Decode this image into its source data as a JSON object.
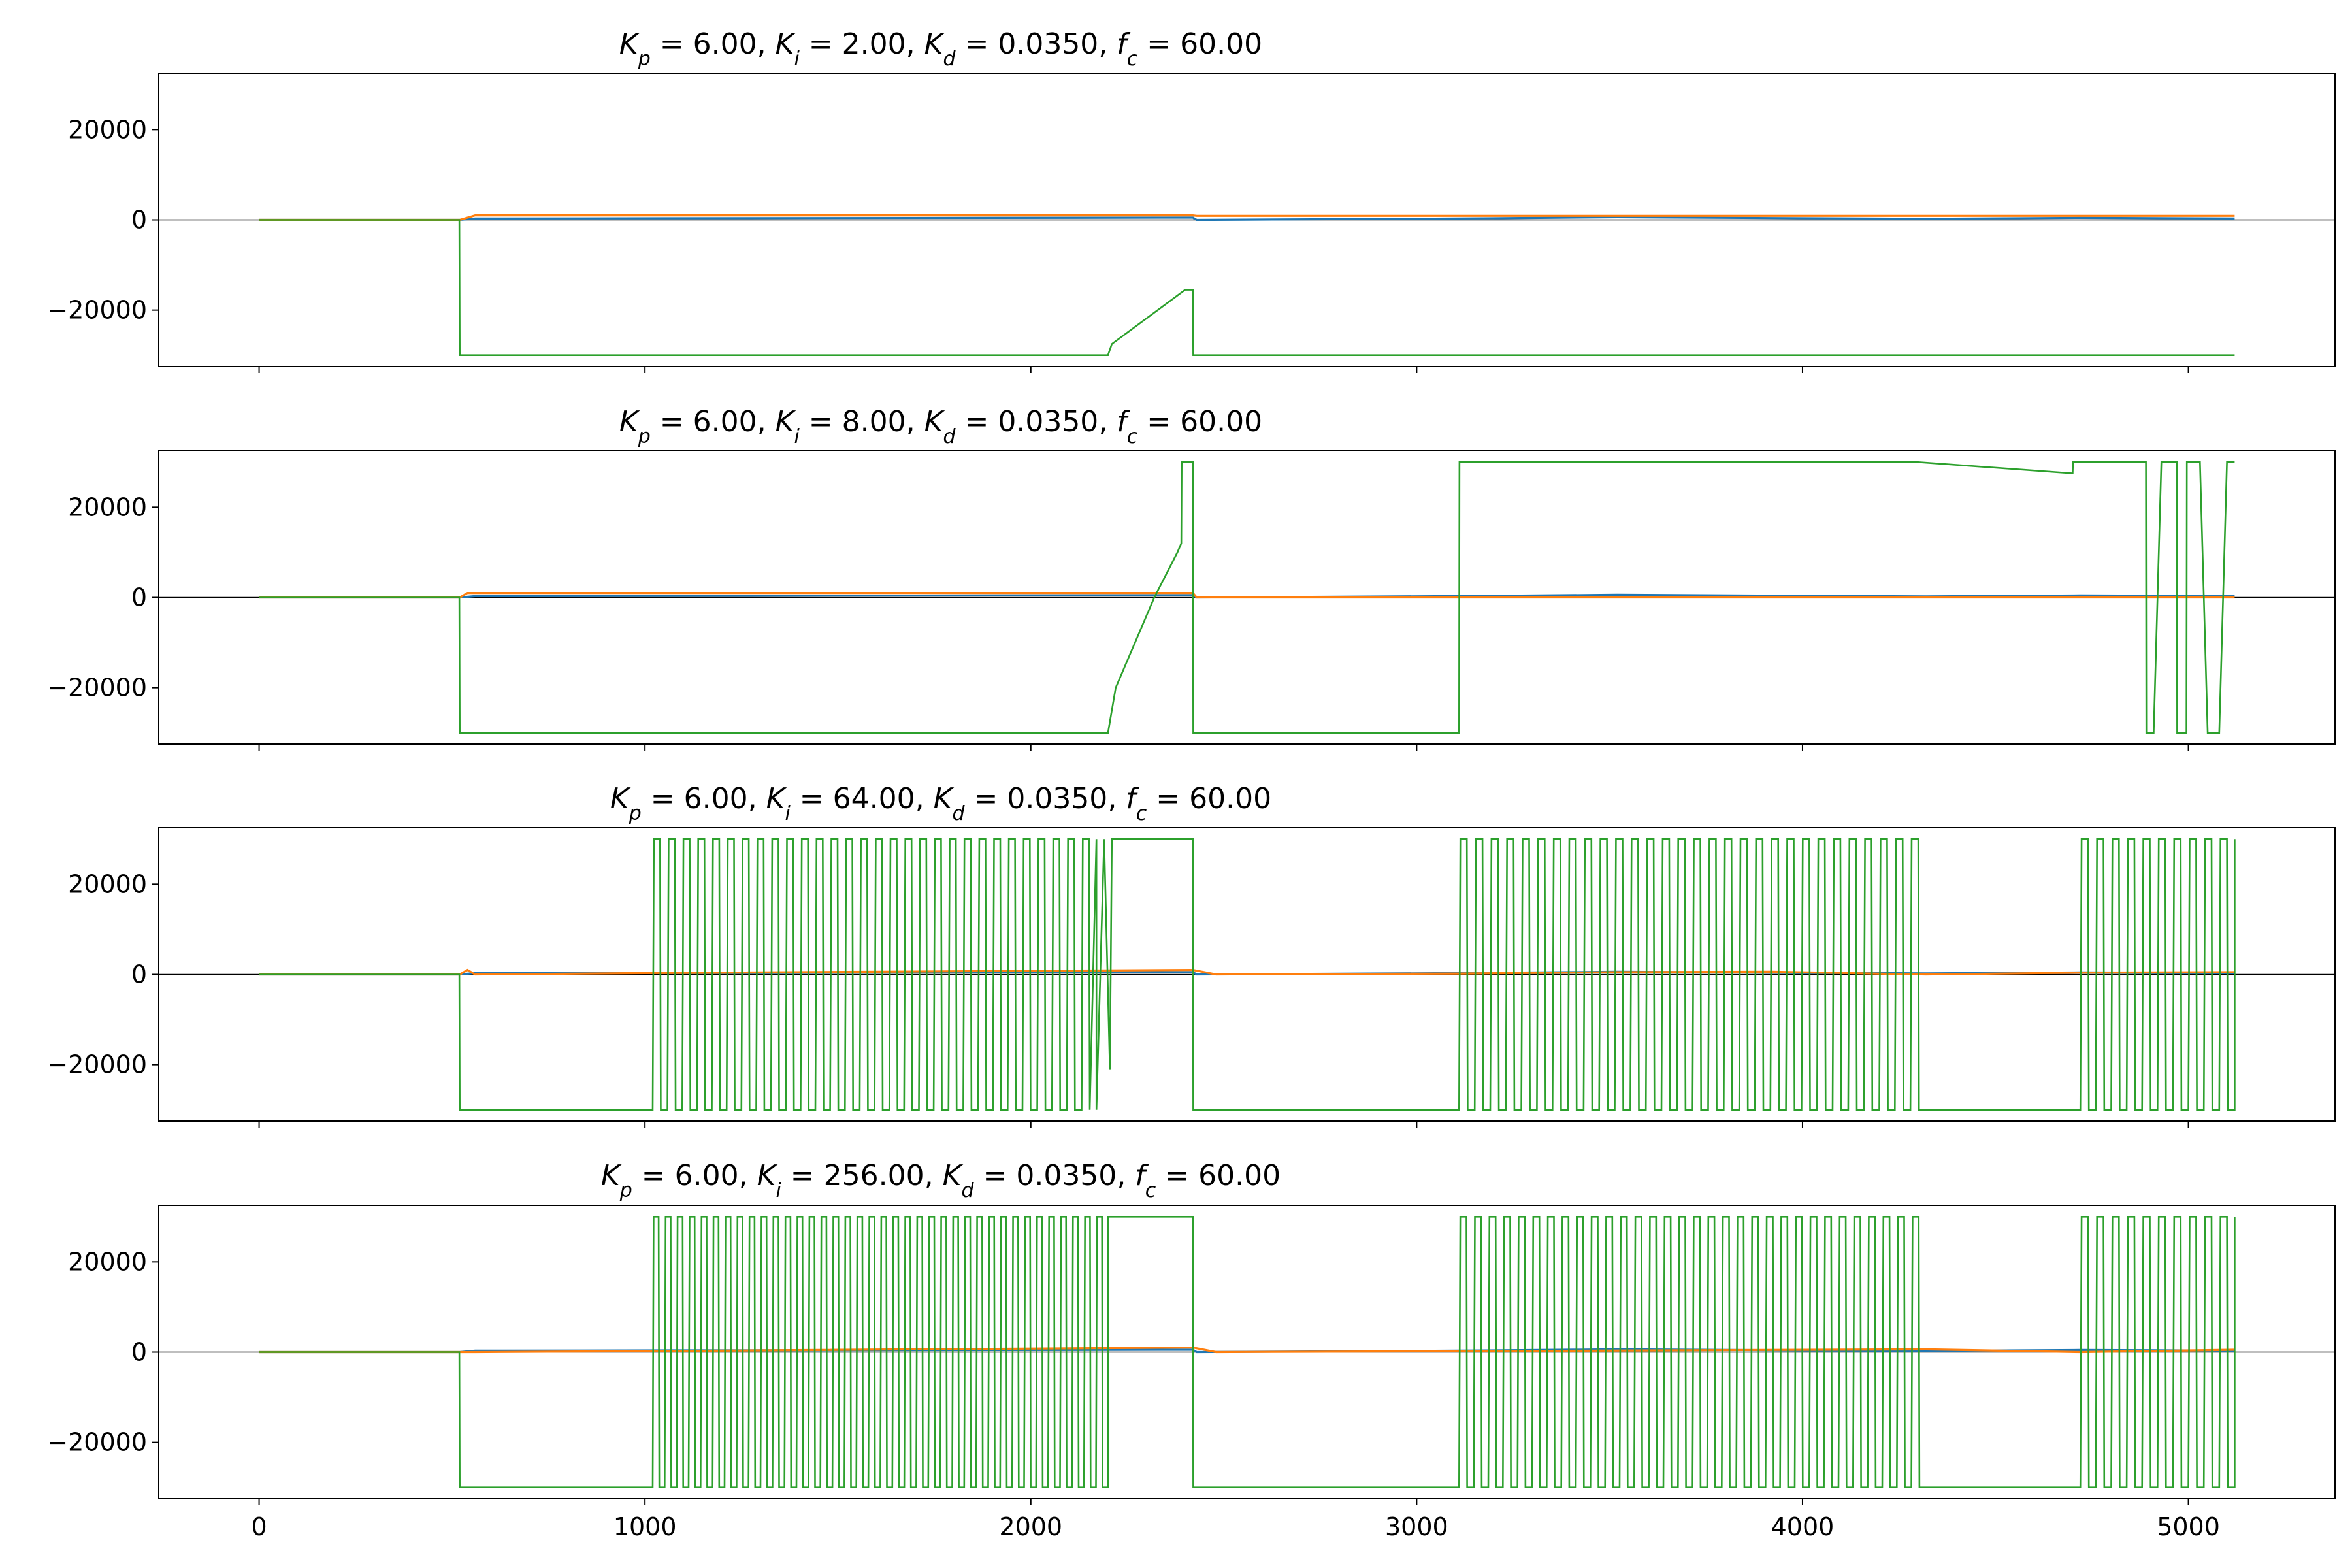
{
  "figure": {
    "background": "#ffffff"
  },
  "colors": {
    "blue": "#1f77b4",
    "orange": "#ff7f0e",
    "green": "#2ca02c",
    "zero_line": "#000000"
  },
  "chart_data": [
    {
      "type": "line",
      "title": "K_p = 6.00,  K_i = 2.00,  K_d = 0.0350,  f_c = 60.00",
      "title_parts": {
        "kp": "6.00",
        "ki": "2.00",
        "kd": "0.0350",
        "fc": "60.00"
      },
      "xlim": [
        -260,
        5380
      ],
      "ylim": [
        -32500,
        32500
      ],
      "xticks": [
        0,
        1000,
        2000,
        3000,
        4000,
        5000
      ],
      "xtick_labels_visible": false,
      "yticks": [
        -20000,
        0,
        20000
      ],
      "series": [
        {
          "color": "blue",
          "x": [
            0,
            520,
            560,
            2420,
            2430,
            3110,
            3520,
            3920,
            4320,
            4720,
            5120
          ],
          "y": [
            0,
            0,
            300,
            500,
            0,
            300,
            600,
            400,
            250,
            450,
            300
          ]
        },
        {
          "color": "orange",
          "x": [
            0,
            520,
            560,
            2420,
            2430,
            5120
          ],
          "y": [
            0,
            0,
            1000,
            1000,
            900,
            900
          ]
        },
        {
          "color": "green",
          "x": [
            0,
            519,
            520,
            2200,
            2210,
            2400,
            2420,
            2421,
            5120
          ],
          "y": [
            0,
            0,
            -30000,
            -30000,
            -27500,
            -15500,
            -15500,
            -30000,
            -30000
          ]
        }
      ]
    },
    {
      "type": "line",
      "title": "K_p = 6.00,  K_i = 8.00,  K_d = 0.0350,  f_c = 60.00",
      "title_parts": {
        "kp": "6.00",
        "ki": "8.00",
        "kd": "0.0350",
        "fc": "60.00"
      },
      "xlim": [
        -260,
        5380
      ],
      "ylim": [
        -32500,
        32500
      ],
      "xticks": [
        0,
        1000,
        2000,
        3000,
        4000,
        5000
      ],
      "xtick_labels_visible": false,
      "yticks": [
        -20000,
        0,
        20000
      ],
      "series": [
        {
          "color": "blue",
          "x": [
            0,
            520,
            560,
            2420,
            2430,
            3110,
            3520,
            3920,
            4320,
            4720,
            5120
          ],
          "y": [
            0,
            0,
            300,
            500,
            0,
            300,
            600,
            400,
            250,
            450,
            300
          ]
        },
        {
          "color": "orange",
          "x": [
            0,
            520,
            540,
            2420,
            2430,
            5120
          ],
          "y": [
            0,
            0,
            1000,
            1000,
            0,
            0
          ]
        },
        {
          "color": "green",
          "x": [
            0,
            519,
            520,
            2200,
            2220,
            2320,
            2380,
            2390,
            2391,
            2420,
            2421,
            3110,
            3111,
            4300,
            4700,
            4701,
            4890,
            4891,
            4910,
            4930,
            4931,
            4970,
            4971,
            4995,
            4996,
            5030,
            5050,
            5080,
            5100,
            5120
          ],
          "y": [
            0,
            0,
            -30000,
            -30000,
            -20000,
            0,
            10000,
            12000,
            30000,
            30000,
            -30000,
            -30000,
            30000,
            30000,
            27500,
            30000,
            30000,
            -30000,
            -30000,
            30000,
            30000,
            30000,
            -30000,
            -30000,
            30000,
            30000,
            -30000,
            -30000,
            30000,
            30000
          ]
        }
      ]
    },
    {
      "type": "line",
      "title": "K_p = 6.00,  K_i = 64.00,  K_d = 0.0350,  f_c = 60.00",
      "title_parts": {
        "kp": "6.00",
        "ki": "64.00",
        "kd": "0.0350",
        "fc": "60.00"
      },
      "xlim": [
        -260,
        5380
      ],
      "ylim": [
        -32500,
        32500
      ],
      "xticks": [
        0,
        1000,
        2000,
        3000,
        4000,
        5000
      ],
      "xtick_labels_visible": false,
      "yticks": [
        -20000,
        0,
        20000
      ],
      "oscillation_bursts": [
        {
          "start": 1020,
          "end": 2170,
          "cycles": 30
        },
        {
          "start": 3110,
          "end": 4320,
          "cycles": 30
        },
        {
          "start": 4720,
          "end": 5120,
          "cycles": 10
        }
      ],
      "series": [
        {
          "color": "blue",
          "x": [
            0,
            520,
            560,
            2420,
            2430,
            3110,
            3520,
            3920,
            4320,
            4720,
            5120
          ],
          "y": [
            0,
            0,
            300,
            500,
            0,
            300,
            600,
            400,
            250,
            450,
            300
          ]
        },
        {
          "color": "orange",
          "x": [
            0,
            520,
            540,
            560,
            1000,
            2420,
            2480,
            3110,
            3520,
            3920,
            4320,
            4720,
            5120
          ],
          "y": [
            0,
            0,
            1000,
            0,
            300,
            1000,
            0,
            200,
            500,
            600,
            0,
            400,
            500
          ]
        },
        {
          "color": "green",
          "x": [
            0,
            519,
            520,
            1000,
            2170,
            2190,
            2205,
            2210,
            2220,
            2420,
            2421,
            3110,
            4320,
            4330,
            4720,
            5120
          ],
          "y": [
            0,
            0,
            -30000,
            -30000,
            30000,
            30000,
            -21000,
            30000,
            30000,
            30000,
            -30000,
            -30000,
            -30000,
            -30000,
            -30000,
            30000
          ]
        }
      ]
    },
    {
      "type": "line",
      "title": "K_p = 6.00,  K_i = 256.00,  K_d = 0.0350,  f_c = 60.00",
      "title_parts": {
        "kp": "6.00",
        "ki": "256.00",
        "kd": "0.0350",
        "fc": "60.00"
      },
      "xlim": [
        -260,
        5380
      ],
      "ylim": [
        -32500,
        32500
      ],
      "xticks": [
        0,
        1000,
        2000,
        3000,
        4000,
        5000
      ],
      "xtick_labels": [
        "0",
        "1000",
        "2000",
        "3000",
        "4000",
        "5000"
      ],
      "yticks": [
        -20000,
        0,
        20000
      ],
      "oscillation_bursts": [
        {
          "start": 1020,
          "end": 2200,
          "cycles": 38
        },
        {
          "start": 3110,
          "end": 4320,
          "cycles": 32
        },
        {
          "start": 4720,
          "end": 5120,
          "cycles": 10
        }
      ],
      "series": [
        {
          "color": "blue",
          "x": [
            0,
            520,
            560,
            2420,
            2430,
            3110,
            3520,
            3920,
            4320,
            4720,
            5120
          ],
          "y": [
            0,
            0,
            300,
            500,
            0,
            300,
            600,
            400,
            250,
            450,
            300
          ]
        },
        {
          "color": "orange",
          "x": [
            0,
            520,
            560,
            1000,
            2420,
            2480,
            3110,
            4320,
            4720,
            5120
          ],
          "y": [
            0,
            0,
            0,
            200,
            1000,
            0,
            200,
            600,
            0,
            500
          ]
        },
        {
          "color": "green",
          "x": [
            0,
            519,
            520,
            1000,
            2200,
            2210,
            2420,
            2421,
            3110,
            4320,
            4330,
            4720,
            5120
          ],
          "y": [
            0,
            0,
            -30000,
            -30000,
            30000,
            30000,
            30000,
            -30000,
            -30000,
            -30000,
            -30000,
            -30000,
            30000
          ]
        }
      ]
    }
  ]
}
